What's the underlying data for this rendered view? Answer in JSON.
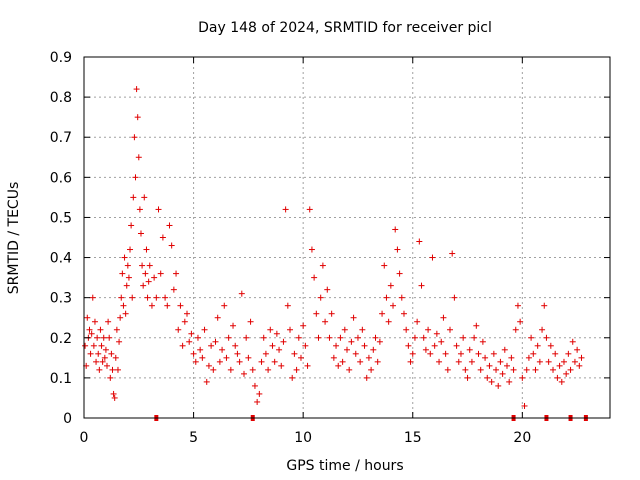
{
  "chart_data": {
    "type": "scatter",
    "title": "Day 148 of 2024, SRMTID for receiver picl",
    "xlabel": "GPS time / hours",
    "ylabel": "SRMTID / TECUs",
    "xlim": [
      0,
      24
    ],
    "ylim": [
      0,
      0.9
    ],
    "xticks": [
      0,
      5,
      10,
      15,
      20
    ],
    "xtick_labels": [
      "0",
      "5",
      "10",
      "15",
      "20"
    ],
    "yticks": [
      0,
      0.1,
      0.2,
      0.3,
      0.4,
      0.5,
      0.6,
      0.7,
      0.8,
      0.9
    ],
    "ytick_labels": [
      "0",
      "0.1",
      "0.2",
      "0.3",
      "0.4",
      "0.5",
      "0.6",
      "0.7",
      "0.8",
      "0.9"
    ],
    "grid": true,
    "marker": "+",
    "color": "#e00000",
    "series": [
      {
        "name": "SRMTID",
        "points": [
          [
            0.05,
            0.18
          ],
          [
            0.1,
            0.13
          ],
          [
            0.15,
            0.25
          ],
          [
            0.2,
            0.2
          ],
          [
            0.25,
            0.22
          ],
          [
            0.3,
            0.16
          ],
          [
            0.35,
            0.21
          ],
          [
            0.4,
            0.3
          ],
          [
            0.45,
            0.18
          ],
          [
            0.5,
            0.24
          ],
          [
            0.55,
            0.14
          ],
          [
            0.6,
            0.2
          ],
          [
            0.65,
            0.16
          ],
          [
            0.7,
            0.12
          ],
          [
            0.75,
            0.22
          ],
          [
            0.8,
            0.18
          ],
          [
            0.85,
            0.14
          ],
          [
            0.9,
            0.2
          ],
          [
            0.95,
            0.15
          ],
          [
            1.0,
            0.17
          ],
          [
            1.05,
            0.13
          ],
          [
            1.1,
            0.24
          ],
          [
            1.15,
            0.2
          ],
          [
            1.2,
            0.1
          ],
          [
            1.25,
            0.16
          ],
          [
            1.3,
            0.12
          ],
          [
            1.35,
            0.06
          ],
          [
            1.4,
            0.05
          ],
          [
            1.45,
            0.15
          ],
          [
            1.5,
            0.22
          ],
          [
            1.55,
            0.12
          ],
          [
            1.6,
            0.19
          ],
          [
            1.65,
            0.25
          ],
          [
            1.7,
            0.3
          ],
          [
            1.75,
            0.36
          ],
          [
            1.8,
            0.28
          ],
          [
            1.85,
            0.4
          ],
          [
            1.9,
            0.26
          ],
          [
            1.95,
            0.33
          ],
          [
            2.0,
            0.38
          ],
          [
            2.05,
            0.35
          ],
          [
            2.1,
            0.42
          ],
          [
            2.15,
            0.48
          ],
          [
            2.2,
            0.3
          ],
          [
            2.25,
            0.55
          ],
          [
            2.3,
            0.7
          ],
          [
            2.35,
            0.6
          ],
          [
            2.4,
            0.82
          ],
          [
            2.45,
            0.75
          ],
          [
            2.5,
            0.65
          ],
          [
            2.55,
            0.52
          ],
          [
            2.6,
            0.46
          ],
          [
            2.65,
            0.38
          ],
          [
            2.7,
            0.33
          ],
          [
            2.75,
            0.55
          ],
          [
            2.8,
            0.36
          ],
          [
            2.85,
            0.42
          ],
          [
            2.9,
            0.3
          ],
          [
            2.95,
            0.34
          ],
          [
            3.0,
            0.38
          ],
          [
            3.1,
            0.28
          ],
          [
            3.2,
            0.35
          ],
          [
            3.3,
            0.3
          ],
          [
            3.4,
            0.52
          ],
          [
            3.5,
            0.36
          ],
          [
            3.6,
            0.45
          ],
          [
            3.7,
            0.3
          ],
          [
            3.8,
            0.28
          ],
          [
            3.9,
            0.48
          ],
          [
            4.0,
            0.43
          ],
          [
            4.1,
            0.32
          ],
          [
            4.2,
            0.36
          ],
          [
            4.3,
            0.22
          ],
          [
            4.4,
            0.28
          ],
          [
            4.5,
            0.18
          ],
          [
            4.6,
            0.24
          ],
          [
            4.7,
            0.26
          ],
          [
            4.8,
            0.19
          ],
          [
            4.9,
            0.21
          ],
          [
            5.0,
            0.16
          ],
          [
            5.1,
            0.14
          ],
          [
            5.2,
            0.2
          ],
          [
            5.3,
            0.17
          ],
          [
            5.4,
            0.15
          ],
          [
            5.5,
            0.22
          ],
          [
            5.6,
            0.09
          ],
          [
            5.7,
            0.13
          ],
          [
            5.8,
            0.18
          ],
          [
            5.9,
            0.12
          ],
          [
            6.0,
            0.19
          ],
          [
            6.1,
            0.25
          ],
          [
            6.2,
            0.14
          ],
          [
            6.3,
            0.17
          ],
          [
            6.4,
            0.28
          ],
          [
            6.5,
            0.15
          ],
          [
            6.6,
            0.2
          ],
          [
            6.7,
            0.12
          ],
          [
            6.8,
            0.23
          ],
          [
            6.9,
            0.18
          ],
          [
            7.0,
            0.16
          ],
          [
            7.1,
            0.14
          ],
          [
            7.2,
            0.31
          ],
          [
            7.3,
            0.11
          ],
          [
            7.4,
            0.2
          ],
          [
            7.5,
            0.15
          ],
          [
            7.6,
            0.24
          ],
          [
            7.7,
            0.12
          ],
          [
            7.8,
            0.08
          ],
          [
            7.9,
            0.04
          ],
          [
            8.0,
            0.06
          ],
          [
            8.1,
            0.14
          ],
          [
            8.2,
            0.2
          ],
          [
            8.3,
            0.16
          ],
          [
            8.4,
            0.12
          ],
          [
            8.5,
            0.22
          ],
          [
            8.6,
            0.18
          ],
          [
            8.7,
            0.14
          ],
          [
            8.8,
            0.21
          ],
          [
            8.9,
            0.17
          ],
          [
            9.0,
            0.13
          ],
          [
            9.1,
            0.19
          ],
          [
            9.2,
            0.52
          ],
          [
            9.3,
            0.28
          ],
          [
            9.4,
            0.22
          ],
          [
            9.5,
            0.1
          ],
          [
            9.6,
            0.16
          ],
          [
            9.7,
            0.12
          ],
          [
            9.8,
            0.2
          ],
          [
            9.9,
            0.15
          ],
          [
            10.0,
            0.23
          ],
          [
            10.1,
            0.18
          ],
          [
            10.2,
            0.13
          ],
          [
            10.3,
            0.52
          ],
          [
            10.4,
            0.42
          ],
          [
            10.5,
            0.35
          ],
          [
            10.6,
            0.26
          ],
          [
            10.7,
            0.2
          ],
          [
            10.8,
            0.3
          ],
          [
            10.9,
            0.38
          ],
          [
            11.0,
            0.24
          ],
          [
            11.1,
            0.32
          ],
          [
            11.2,
            0.2
          ],
          [
            11.3,
            0.26
          ],
          [
            11.4,
            0.15
          ],
          [
            11.5,
            0.18
          ],
          [
            11.6,
            0.13
          ],
          [
            11.7,
            0.2
          ],
          [
            11.8,
            0.14
          ],
          [
            11.9,
            0.22
          ],
          [
            12.0,
            0.17
          ],
          [
            12.1,
            0.12
          ],
          [
            12.2,
            0.19
          ],
          [
            12.3,
            0.25
          ],
          [
            12.4,
            0.16
          ],
          [
            12.5,
            0.2
          ],
          [
            12.6,
            0.14
          ],
          [
            12.7,
            0.22
          ],
          [
            12.8,
            0.18
          ],
          [
            12.9,
            0.1
          ],
          [
            13.0,
            0.15
          ],
          [
            13.1,
            0.12
          ],
          [
            13.2,
            0.17
          ],
          [
            13.3,
            0.2
          ],
          [
            13.4,
            0.14
          ],
          [
            13.5,
            0.19
          ],
          [
            13.6,
            0.26
          ],
          [
            13.7,
            0.38
          ],
          [
            13.8,
            0.3
          ],
          [
            13.9,
            0.24
          ],
          [
            14.0,
            0.33
          ],
          [
            14.1,
            0.28
          ],
          [
            14.2,
            0.47
          ],
          [
            14.3,
            0.42
          ],
          [
            14.4,
            0.36
          ],
          [
            14.5,
            0.3
          ],
          [
            14.6,
            0.26
          ],
          [
            14.7,
            0.22
          ],
          [
            14.8,
            0.18
          ],
          [
            14.9,
            0.14
          ],
          [
            15.0,
            0.16
          ],
          [
            15.1,
            0.2
          ],
          [
            15.2,
            0.24
          ],
          [
            15.3,
            0.44
          ],
          [
            15.4,
            0.33
          ],
          [
            15.5,
            0.2
          ],
          [
            15.6,
            0.17
          ],
          [
            15.7,
            0.22
          ],
          [
            15.8,
            0.16
          ],
          [
            15.9,
            0.4
          ],
          [
            16.0,
            0.18
          ],
          [
            16.1,
            0.21
          ],
          [
            16.2,
            0.14
          ],
          [
            16.3,
            0.19
          ],
          [
            16.4,
            0.25
          ],
          [
            16.5,
            0.16
          ],
          [
            16.6,
            0.12
          ],
          [
            16.7,
            0.22
          ],
          [
            16.8,
            0.41
          ],
          [
            16.9,
            0.3
          ],
          [
            17.0,
            0.18
          ],
          [
            17.1,
            0.14
          ],
          [
            17.2,
            0.16
          ],
          [
            17.3,
            0.2
          ],
          [
            17.4,
            0.12
          ],
          [
            17.5,
            0.1
          ],
          [
            17.6,
            0.17
          ],
          [
            17.7,
            0.14
          ],
          [
            17.8,
            0.2
          ],
          [
            17.9,
            0.23
          ],
          [
            18.0,
            0.16
          ],
          [
            18.1,
            0.12
          ],
          [
            18.2,
            0.19
          ],
          [
            18.3,
            0.15
          ],
          [
            18.4,
            0.1
          ],
          [
            18.5,
            0.13
          ],
          [
            18.6,
            0.09
          ],
          [
            18.7,
            0.16
          ],
          [
            18.8,
            0.12
          ],
          [
            18.9,
            0.08
          ],
          [
            19.0,
            0.14
          ],
          [
            19.1,
            0.11
          ],
          [
            19.2,
            0.17
          ],
          [
            19.3,
            0.13
          ],
          [
            19.4,
            0.09
          ],
          [
            19.5,
            0.15
          ],
          [
            19.6,
            0.12
          ],
          [
            19.7,
            0.22
          ],
          [
            19.8,
            0.28
          ],
          [
            19.9,
            0.24
          ],
          [
            20.0,
            0.1
          ],
          [
            20.1,
            0.03
          ],
          [
            20.2,
            0.12
          ],
          [
            20.3,
            0.15
          ],
          [
            20.4,
            0.2
          ],
          [
            20.5,
            0.16
          ],
          [
            20.6,
            0.12
          ],
          [
            20.7,
            0.18
          ],
          [
            20.8,
            0.14
          ],
          [
            20.9,
            0.22
          ],
          [
            21.0,
            0.28
          ],
          [
            21.1,
            0.2
          ],
          [
            21.2,
            0.14
          ],
          [
            21.3,
            0.18
          ],
          [
            21.4,
            0.12
          ],
          [
            21.5,
            0.16
          ],
          [
            21.6,
            0.1
          ],
          [
            21.7,
            0.13
          ],
          [
            21.8,
            0.09
          ],
          [
            21.9,
            0.14
          ],
          [
            22.0,
            0.11
          ],
          [
            22.1,
            0.16
          ],
          [
            22.2,
            0.12
          ],
          [
            22.3,
            0.19
          ],
          [
            22.4,
            0.14
          ],
          [
            22.5,
            0.17
          ],
          [
            22.6,
            0.13
          ],
          [
            22.7,
            0.15
          ]
        ]
      }
    ],
    "axis_ticks_markers": [
      3.3,
      7.7,
      19.6,
      21.1,
      22.2,
      22.9
    ]
  }
}
